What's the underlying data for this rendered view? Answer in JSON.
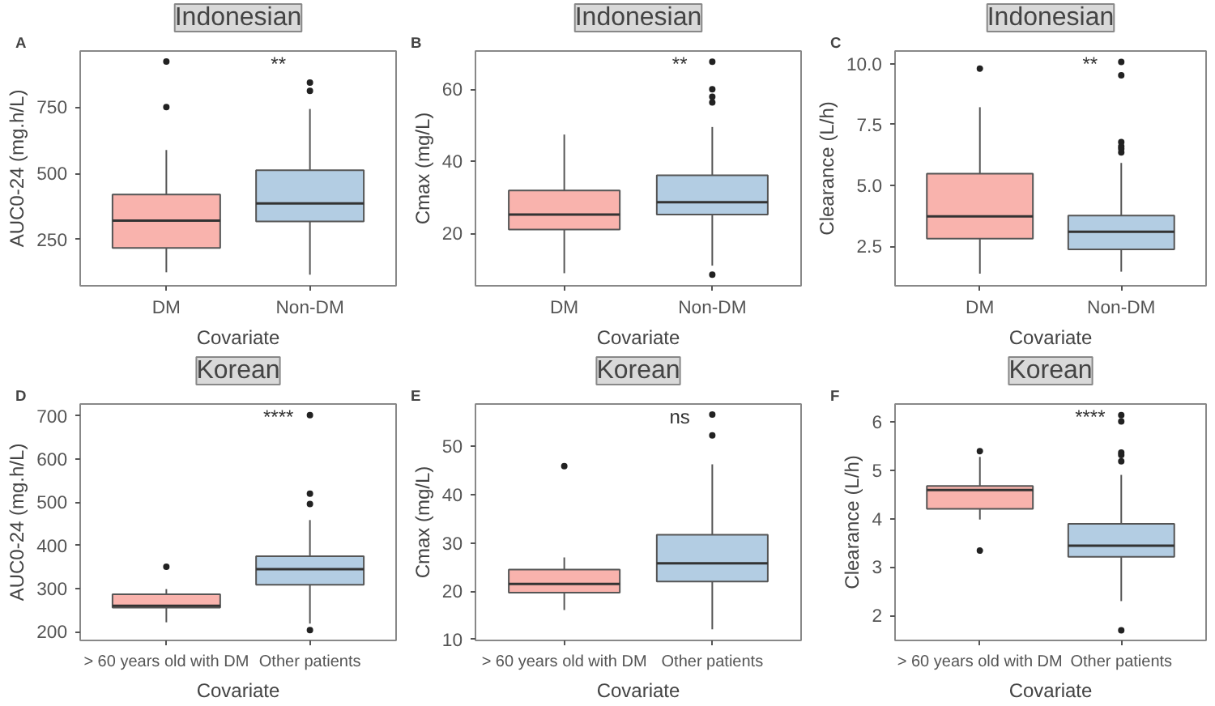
{
  "chart_data": [
    {
      "type": "box",
      "title": "Indonesian",
      "xlabel": "Covariate",
      "ylabel": "AUC0-24 (mg.h/L)",
      "categories": [
        "DM",
        "Non-DM"
      ],
      "colors": [
        "#f9b3ad",
        "#b3cde3"
      ],
      "ylim": [
        75,
        962
      ],
      "yticks": [
        250,
        500,
        750
      ],
      "grid": false,
      "boxes": [
        {
          "low": 126,
          "q1": 218,
          "median": 321,
          "q3": 420,
          "high": 588,
          "outliers": [
            750,
            922
          ]
        },
        {
          "low": 117,
          "q1": 318,
          "median": 386,
          "q3": 512,
          "high": 743,
          "outliers": [
            811,
            843
          ]
        }
      ],
      "annotations": [
        "A",
        "**"
      ]
    },
    {
      "type": "box",
      "title": "Indonesian",
      "xlabel": "Covariate",
      "ylabel": "Cmax (mg/L)",
      "categories": [
        "DM",
        "Non-DM"
      ],
      "colors": [
        "#f9b3ad",
        "#b3cde3"
      ],
      "ylim": [
        5.4,
        70.6
      ],
      "yticks": [
        20,
        40,
        60
      ],
      "grid": false,
      "boxes": [
        {
          "low": 8.9,
          "q1": 21,
          "median": 25.2,
          "q3": 31.9,
          "high": 47.4
        },
        {
          "low": 11,
          "q1": 25.2,
          "median": 28.6,
          "q3": 36.1,
          "high": 49.5,
          "outliers": [
            8.5,
            56.3,
            57.9,
            60,
            67.6
          ]
        }
      ],
      "annotations": [
        "B",
        "**"
      ]
    },
    {
      "type": "box",
      "title": "Indonesian",
      "xlabel": "Covariate",
      "ylabel": "Clearance (L/h)",
      "categories": [
        "DM",
        "Non-DM"
      ],
      "colors": [
        "#f9b3ad",
        "#b3cde3"
      ],
      "ylim": [
        0.87,
        10.52
      ],
      "yticks": [
        {
          "value": 2.5,
          "label": "2.5"
        },
        {
          "value": 5,
          "label": "5.0"
        },
        {
          "value": 7.5,
          "label": "7.5"
        },
        {
          "value": 10,
          "label": "10.0"
        }
      ],
      "grid": false,
      "boxes": [
        {
          "low": 1.37,
          "q1": 2.81,
          "median": 3.72,
          "q3": 5.48,
          "high": 8.21,
          "outliers": [
            9.8
          ]
        },
        {
          "low": 1.45,
          "q1": 2.37,
          "median": 3.09,
          "q3": 3.76,
          "high": 5.92,
          "outliers": [
            6.35,
            6.5,
            6.6,
            6.78,
            9.52,
            10.07
          ]
        }
      ],
      "annotations": [
        "C",
        "**"
      ]
    },
    {
      "type": "box",
      "title": "Korean",
      "xlabel": "Covariate",
      "ylabel": "AUC0-24 (mg.h/L)",
      "categories": [
        "> 60 years old with DM",
        "Other patients"
      ],
      "colors": [
        "#f9b3ad",
        "#b3cde3"
      ],
      "ylim": [
        180,
        728
      ],
      "yticks": [
        200,
        300,
        400,
        500,
        600,
        700
      ],
      "grid": false,
      "boxes": [
        {
          "low": 222,
          "q1": 256,
          "median": 260,
          "q3": 287,
          "high": 299,
          "outliers": [
            351
          ]
        },
        {
          "low": 219,
          "q1": 309,
          "median": 345,
          "q3": 375,
          "high": 459,
          "outliers": [
            204,
            496,
            520,
            702
          ]
        }
      ],
      "annotations": [
        "D",
        "****"
      ]
    },
    {
      "type": "box",
      "title": "Korean",
      "xlabel": "Covariate",
      "ylabel": "Cmax (mg/L)",
      "categories": [
        "> 60 years old with DM",
        "Other patients"
      ],
      "colors": [
        "#f9b3ad",
        "#b3cde3"
      ],
      "ylim": [
        9.8,
        58.8
      ],
      "yticks": [
        10,
        20,
        30,
        40,
        50
      ],
      "grid": false,
      "boxes": [
        {
          "low": 16.1,
          "q1": 19.7,
          "median": 21.5,
          "q3": 24.5,
          "high": 27,
          "outliers": [
            45.9
          ]
        },
        {
          "low": 12.1,
          "q1": 22,
          "median": 25.8,
          "q3": 31.7,
          "high": 46.3,
          "outliers": [
            52.3,
            56.6
          ]
        }
      ],
      "annotations": [
        "E",
        "ns"
      ]
    },
    {
      "type": "box",
      "title": "Korean",
      "xlabel": "Covariate",
      "ylabel": "Clearance (L/h)",
      "categories": [
        "> 60 years old with DM",
        "Other patients"
      ],
      "colors": [
        "#f9b3ad",
        "#b3cde3"
      ],
      "ylim": [
        1.49,
        6.36
      ],
      "yticks": [
        2,
        3,
        4,
        5,
        6
      ],
      "grid": false,
      "boxes": [
        {
          "low": 3.98,
          "q1": 4.2,
          "median": 4.59,
          "q3": 4.67,
          "high": 5.27,
          "outliers": [
            3.34,
            5.39
          ]
        },
        {
          "low": 2.3,
          "q1": 3.21,
          "median": 3.44,
          "q3": 3.89,
          "high": 4.9,
          "outliers": [
            1.7,
            5.18,
            5.31,
            5.36,
            6.0,
            6.13
          ]
        }
      ],
      "annotations": [
        "F",
        "****"
      ]
    }
  ]
}
